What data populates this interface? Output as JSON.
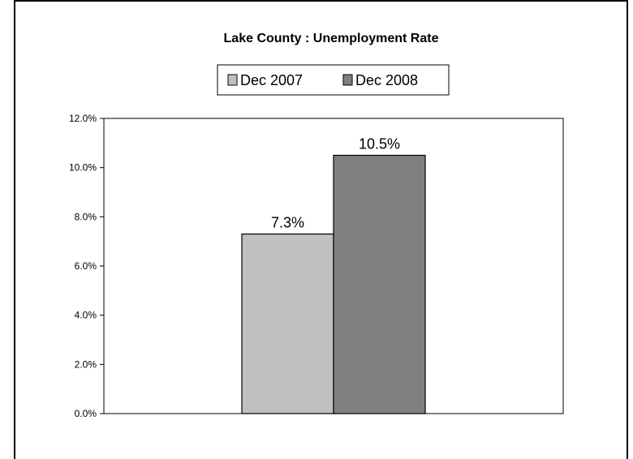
{
  "chart_data": {
    "type": "bar",
    "title": "Lake County : Unemployment Rate",
    "categories": [
      ""
    ],
    "series": [
      {
        "name": "Dec 2007",
        "values": [
          7.3
        ],
        "color": "#c0c0c0",
        "data_label": "7.3%"
      },
      {
        "name": "Dec 2008",
        "values": [
          10.5
        ],
        "color": "#808080",
        "data_label": "10.5%"
      }
    ],
    "ylim": [
      0,
      12
    ],
    "yticks": [
      0,
      2,
      4,
      6,
      8,
      10,
      12
    ],
    "ytick_labels": [
      "0.0%",
      "2.0%",
      "4.0%",
      "6.0%",
      "8.0%",
      "10.0%",
      "12.0%"
    ],
    "xlabel": "",
    "ylabel": "",
    "legend_position": "top",
    "grid": false
  }
}
